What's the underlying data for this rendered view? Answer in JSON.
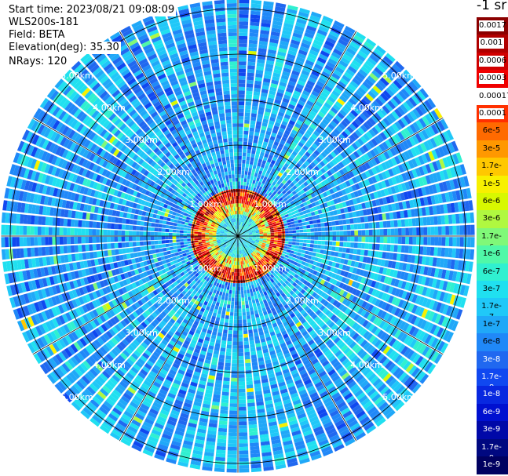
{
  "header": {
    "start_time": "Start time: 2023/08/21 09:08:09",
    "instrument": "WLS200s-181",
    "field": "Field: BETA",
    "elevation": "Elevation(deg): 35.30",
    "nrays": "NRays: 120"
  },
  "colorbar": {
    "unit": "-1 sr",
    "levels": [
      "0.0017",
      "0.001",
      "0.0006",
      "0.0003",
      "0.00017",
      "0.0001",
      "6e-5",
      "3e-5",
      "1.7e-5",
      "1e-5",
      "6e-6",
      "3e-6",
      "1.7e-6",
      "1e-6",
      "6e-7",
      "3e-7",
      "1.7e-7",
      "1e-7",
      "6e-8",
      "3e-8",
      "1.7e-8",
      "1e-8",
      "6e-9",
      "3e-9",
      "1.7e-9",
      "1e-9"
    ],
    "colors": [
      "#8b0000",
      "#b00000",
      "#d00000",
      "#f00000",
      "#ffffff",
      "#ff3000",
      "#ff6a00",
      "#ff9800",
      "#ffc800",
      "#f8f000",
      "#d8f800",
      "#b0f840",
      "#80f878",
      "#50f8a8",
      "#30f0d0",
      "#20e0f0",
      "#20c8f8",
      "#20a8f8",
      "#2088f8",
      "#2068f0",
      "#1048f0",
      "#0828e0",
      "#0010d0",
      "#0008a8",
      "#000880",
      "#000060"
    ]
  },
  "chart_data": {
    "type": "heatmap",
    "projection": "polar PPI scan",
    "field": "BETA",
    "n_rays": 120,
    "range_rings_km": [
      1.0,
      2.0,
      3.0,
      4.0,
      5.0
    ],
    "range_ring_labels": [
      "1.00km",
      "2.00km",
      "3.00km",
      "4.00km",
      "5.00km"
    ],
    "max_range_km": 5.2,
    "scale": "log",
    "value_range": [
      1e-09,
      0.0017
    ],
    "typical_values": {
      "near_field_ring_km": [
        0.7,
        1.0
      ],
      "near_field_ring_value": 0.0003,
      "inner_core_value": 3e-07,
      "background_value": 1e-07,
      "background_spread_low": 1.7e-08,
      "background_spread_high": 6e-07
    }
  }
}
